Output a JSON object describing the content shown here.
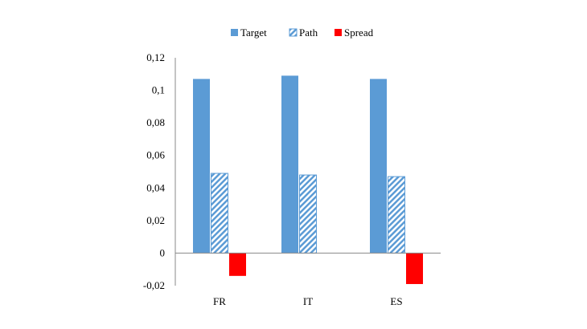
{
  "chart_data": {
    "type": "bar",
    "categories": [
      "FR",
      "IT",
      "ES"
    ],
    "series": [
      {
        "name": "Target",
        "values": [
          0.107,
          0.109,
          0.107
        ],
        "color": "#5b9bd5",
        "fill": "solid"
      },
      {
        "name": "Path",
        "values": [
          0.049,
          0.048,
          0.047
        ],
        "color": "#5b9bd5",
        "fill": "diagonal-hatch"
      },
      {
        "name": "Spread",
        "values": [
          -0.014,
          null,
          -0.019
        ],
        "color": "#ff0000",
        "fill": "solid"
      }
    ],
    "ylim": [
      -0.02,
      0.12
    ],
    "yticks": [
      "0,12",
      "0,1",
      "0,08",
      "0,06",
      "0,04",
      "0,02",
      "0",
      "-0,02"
    ],
    "ytick_values": [
      0.12,
      0.1,
      0.08,
      0.06,
      0.04,
      0.02,
      0,
      -0.02
    ],
    "legend_position": "top-center",
    "grid": false
  }
}
